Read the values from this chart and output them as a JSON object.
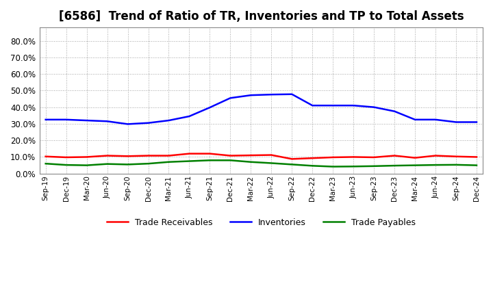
{
  "title": "[6586]  Trend of Ratio of TR, Inventories and TP to Total Assets",
  "x_labels": [
    "Sep-19",
    "Dec-19",
    "Mar-20",
    "Jun-20",
    "Sep-20",
    "Dec-20",
    "Mar-21",
    "Jun-21",
    "Sep-21",
    "Dec-21",
    "Mar-22",
    "Jun-22",
    "Sep-22",
    "Dec-22",
    "Mar-23",
    "Jun-23",
    "Sep-23",
    "Dec-23",
    "Mar-24",
    "Jun-24",
    "Sep-24",
    "Dec-24"
  ],
  "trade_receivables": [
    0.103,
    0.098,
    0.1,
    0.108,
    0.105,
    0.108,
    0.108,
    0.12,
    0.12,
    0.108,
    0.11,
    0.112,
    0.088,
    0.093,
    0.098,
    0.1,
    0.098,
    0.108,
    0.095,
    0.108,
    0.103,
    0.1
  ],
  "inventories": [
    0.325,
    0.325,
    0.32,
    0.315,
    0.298,
    0.305,
    0.32,
    0.345,
    0.398,
    0.455,
    0.472,
    0.476,
    0.478,
    0.41,
    0.41,
    0.41,
    0.4,
    0.375,
    0.325,
    0.325,
    0.31,
    0.31
  ],
  "trade_payables": [
    0.06,
    0.052,
    0.05,
    0.058,
    0.055,
    0.06,
    0.07,
    0.075,
    0.08,
    0.08,
    0.07,
    0.063,
    0.055,
    0.047,
    0.042,
    0.043,
    0.045,
    0.048,
    0.05,
    0.052,
    0.053,
    0.05
  ],
  "tr_color": "#ff0000",
  "inv_color": "#0000ff",
  "tp_color": "#008000",
  "ylim": [
    0.0,
    0.88
  ],
  "yticks": [
    0.0,
    0.1,
    0.2,
    0.3,
    0.4,
    0.5,
    0.6,
    0.7,
    0.8
  ],
  "background_color": "#ffffff",
  "grid_color": "#999999",
  "title_fontsize": 12,
  "line_width": 1.8
}
